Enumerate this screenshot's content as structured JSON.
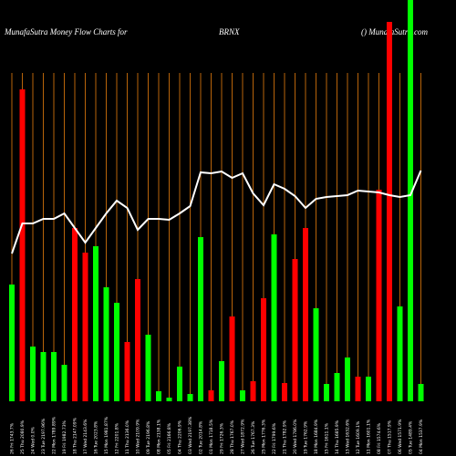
{
  "chart_data": {
    "type": "bar",
    "title": "MunafaSutra  Money Flow  Charts for",
    "subtitle": "BRNX",
    "source": "() MunafaSutra.com",
    "categories": [
      "26 Fri 1743.7%",
      "25 Thu 2080.9%",
      "24 Wed 0.0%",
      "23 Tue 2197.96%",
      "22 Mon 1789.89%",
      "19 Fri 1982.73%",
      "18 Thu 2147.09%",
      "17 Wed 2143.6%",
      "16 Tue 2023.8%",
      "15 Mon 1981.87%",
      "12 Fri 2201.8%",
      "11 Thu 2136.0%",
      "10 Wed 2109.9%",
      "09 Tue 2196.8%",
      "08 Mon 2138.1%",
      "05 Fri 2166.8%",
      "04 Thu 2206.9%",
      "03 Wed 2197.38%",
      "02 Tue 2014.8%",
      "01 Mon 1718.5%",
      "29 Fri 1726.3%",
      "28 Thu 1767.0%",
      "27 Wed 1872.9%",
      "26 Tue 1767.3%",
      "25 Mon 1776.3%",
      "22 Fri 1799.6%",
      "21 Thu 1782.9%",
      "20 Wed 1786.0%",
      "19 Tue 1762.9%",
      "18 Mon 1684.9%",
      "15 Fri 1611.1%",
      "14 Thu 1685.9%",
      "13 Wed 1632.6%",
      "12 Tue 1609.1%",
      "11 Mon 1601.1%",
      "08 Fri 1574.6%",
      "07 Thu 1517.9%",
      "06 Wed 1571.9%",
      "05 Tue 1489.4%",
      "04 Mon 1537.9%"
    ],
    "values": [
      128,
      342,
      60,
      54,
      54,
      40,
      190,
      163,
      170,
      125,
      108,
      65,
      134,
      73,
      11,
      4,
      38,
      8,
      180,
      12,
      44,
      93,
      12,
      22,
      113,
      183,
      20,
      156,
      190,
      102,
      19,
      31,
      48,
      27,
      27,
      232,
      416,
      104,
      460,
      19
    ],
    "colors": [
      "#00ff00",
      "#ff0000",
      "#00ff00",
      "#00ff00",
      "#00ff00",
      "#00ff00",
      "#ff0000",
      "#ff0000",
      "#00ff00",
      "#00ff00",
      "#00ff00",
      "#ff0000",
      "#ff0000",
      "#00ff00",
      "#00ff00",
      "#00ff00",
      "#00ff00",
      "#00ff00",
      "#00ff00",
      "#ff0000",
      "#00ff00",
      "#ff0000",
      "#00ff00",
      "#ff0000",
      "#ff0000",
      "#00ff00",
      "#ff0000",
      "#ff0000",
      "#ff0000",
      "#00ff00",
      "#00ff00",
      "#00ff00",
      "#00ff00",
      "#ff0000",
      "#00ff00",
      "#ff0000",
      "#ff0000",
      "#00ff00",
      "#00ff00",
      "#00ff00"
    ],
    "line": {
      "color": "#ffffff",
      "values": [
        162,
        195,
        195,
        200,
        200,
        206,
        190,
        174,
        190,
        206,
        220,
        212,
        188,
        200,
        200,
        199,
        206,
        214,
        251,
        250,
        252,
        245,
        250,
        228,
        215,
        238,
        233,
        225,
        212,
        222,
        224,
        225,
        226,
        231,
        230,
        229,
        226,
        224,
        226,
        253
      ]
    },
    "ylim": [
      0,
      440
    ],
    "gridColor": "#b8640a"
  }
}
